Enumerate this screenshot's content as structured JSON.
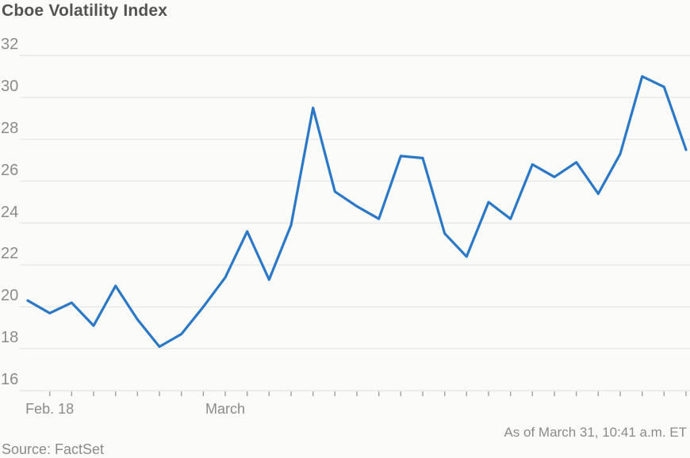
{
  "title": "Cboe Volatility Index",
  "footer": {
    "source": "Source: FactSet",
    "as_of": "As of March 31, 10:41 a.m. ET"
  },
  "colors": {
    "line": "#2a78c6",
    "gridline": "#e8e8e5",
    "tick": "#9b9b9b",
    "axis_text": "#8b8b8b",
    "title_text": "#535353",
    "background": "#fbfbf9"
  },
  "chart_data": {
    "type": "line",
    "title": "Cboe Volatility Index",
    "series_name": "Cboe Volatility Index",
    "xlabel": "",
    "ylabel": "",
    "ylim": [
      16,
      32
    ],
    "y_ticks": [
      16,
      18,
      20,
      22,
      24,
      26,
      28,
      30,
      32
    ],
    "grid": true,
    "legend": "none",
    "x_tick_labels": [
      {
        "text": "Feb. 18",
        "point_index": 1
      },
      {
        "text": "March",
        "point_index": 9
      }
    ],
    "values": [
      20.3,
      19.7,
      20.2,
      19.1,
      21.0,
      19.4,
      18.1,
      18.7,
      20.0,
      21.4,
      23.6,
      21.3,
      23.9,
      29.5,
      25.5,
      24.8,
      24.2,
      27.2,
      27.1,
      23.5,
      22.4,
      25.0,
      24.2,
      26.8,
      26.2,
      26.9,
      25.4,
      27.3,
      31.0,
      30.5,
      27.5
    ]
  }
}
